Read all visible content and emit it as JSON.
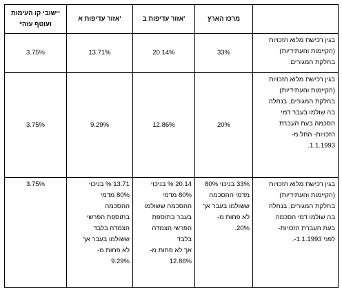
{
  "headers": [
    "",
    "מרכז הארץ",
    "אזור עדיפות ב'",
    "אזור עדיפות א'",
    "יישובי קו העימות ועוטף עזה*"
  ],
  "rows": [
    {
      "label": "בגין רכישת מלוא הזכויות\n(הקיימות והעתידיות)\nבחלקת המגורים.",
      "center": "33%",
      "zoneB": "20.14%",
      "zoneA": "13.71%",
      "border": "3.75%"
    },
    {
      "label": "בגין רכישת מלוא הזכויות\n(הקיימות והעתידיות)\nבחלקת המגורים, בנחלה\nבה שולמו בעבר דמי\nהסכמה בעת העברת\nהזכויות- החל מ-\n1.1.1993.",
      "center": "20%",
      "zoneB": "12.86%",
      "zoneA": "9.29%",
      "border": "3.75%"
    },
    {
      "label": "בגין רכישת מלוא הזכויות\n(הקיימות והעתידיות)\nבחלקת המגורים, בנחלה\nבה שולמו דמי הסכמה\nבעת העברת הזכויות-\nלפני 1.1.1993-.",
      "center": "33% בניכוי 80%\nמדמי ההסכמה\nששולמו בעבר אך\nלא פחות מ-\n20%.",
      "zoneB": "20.14 % בניכוי\n80% מדמי\nההסכמה ששולמו\nבעבר בתוספת\nהפרשי הצמדה\nבלבד\nאך לא פחות מ-\n12.86%",
      "zoneA": "13.71 % בניכוי\n80% מדמי\nההסכמה\nבתוספת הפרשי\nהצמדה בלבד\nששולמו בעבר אך\nלא פחות מ-\n9.29%",
      "border": "3.75%"
    }
  ]
}
